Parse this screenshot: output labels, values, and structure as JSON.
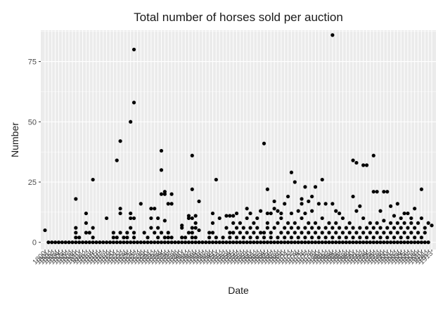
{
  "chart_data": {
    "type": "scatter",
    "title": "Total number of horses sold per auction",
    "xlabel": "Date",
    "ylabel": "Number",
    "ylim": [
      -3,
      88
    ],
    "yticks": [
      0,
      25,
      50,
      75
    ],
    "grid": true,
    "background": "#ebebeb",
    "point_color": "#000000",
    "x_tick_labels_first": "1800",
    "x_tick_labels_last": "1913",
    "x_range": [
      1800,
      1913
    ],
    "points": [
      [
        1800,
        5
      ],
      [
        1801,
        0
      ],
      [
        1802,
        0
      ],
      [
        1803,
        0
      ],
      [
        1804,
        0
      ],
      [
        1805,
        0
      ],
      [
        1806,
        0
      ],
      [
        1807,
        0
      ],
      [
        1808,
        0
      ],
      [
        1809,
        0
      ],
      [
        1809,
        6
      ],
      [
        1809,
        18
      ],
      [
        1809,
        4
      ],
      [
        1809,
        2
      ],
      [
        1810,
        0
      ],
      [
        1810,
        2
      ],
      [
        1811,
        0
      ],
      [
        1812,
        0
      ],
      [
        1812,
        8
      ],
      [
        1812,
        12
      ],
      [
        1812,
        4
      ],
      [
        1813,
        0
      ],
      [
        1813,
        4
      ],
      [
        1814,
        0
      ],
      [
        1814,
        2
      ],
      [
        1814,
        6
      ],
      [
        1814,
        26
      ],
      [
        1815,
        0
      ],
      [
        1816,
        0
      ],
      [
        1817,
        0
      ],
      [
        1818,
        0
      ],
      [
        1818,
        10
      ],
      [
        1819,
        0
      ],
      [
        1820,
        0
      ],
      [
        1820,
        2
      ],
      [
        1820,
        4
      ],
      [
        1821,
        0
      ],
      [
        1821,
        2
      ],
      [
        1821,
        34
      ],
      [
        1822,
        0
      ],
      [
        1822,
        4
      ],
      [
        1822,
        14
      ],
      [
        1822,
        42
      ],
      [
        1822,
        12
      ],
      [
        1823,
        0
      ],
      [
        1823,
        2
      ],
      [
        1824,
        0
      ],
      [
        1824,
        2
      ],
      [
        1824,
        4
      ],
      [
        1825,
        0
      ],
      [
        1825,
        6
      ],
      [
        1825,
        50
      ],
      [
        1825,
        12
      ],
      [
        1825,
        10
      ],
      [
        1826,
        0
      ],
      [
        1826,
        80
      ],
      [
        1826,
        58
      ],
      [
        1826,
        2
      ],
      [
        1826,
        4
      ],
      [
        1826,
        10
      ],
      [
        1827,
        0
      ],
      [
        1828,
        0
      ],
      [
        1828,
        16
      ],
      [
        1829,
        0
      ],
      [
        1829,
        4
      ],
      [
        1830,
        0
      ],
      [
        1830,
        2
      ],
      [
        1831,
        0
      ],
      [
        1831,
        6
      ],
      [
        1831,
        10
      ],
      [
        1831,
        14
      ],
      [
        1832,
        0
      ],
      [
        1832,
        4
      ],
      [
        1832,
        14
      ],
      [
        1833,
        0
      ],
      [
        1833,
        2
      ],
      [
        1833,
        6
      ],
      [
        1833,
        10
      ],
      [
        1834,
        0
      ],
      [
        1834,
        30
      ],
      [
        1834,
        38
      ],
      [
        1834,
        4
      ],
      [
        1834,
        20
      ],
      [
        1835,
        0
      ],
      [
        1835,
        20
      ],
      [
        1835,
        21
      ],
      [
        1835,
        9
      ],
      [
        1835,
        2
      ],
      [
        1836,
        0
      ],
      [
        1836,
        16
      ],
      [
        1836,
        4
      ],
      [
        1836,
        2
      ],
      [
        1837,
        0
      ],
      [
        1837,
        20
      ],
      [
        1837,
        16
      ],
      [
        1837,
        2
      ],
      [
        1838,
        0
      ],
      [
        1839,
        0
      ],
      [
        1840,
        0
      ],
      [
        1840,
        2
      ],
      [
        1840,
        6
      ],
      [
        1840,
        7
      ],
      [
        1841,
        0
      ],
      [
        1841,
        2
      ],
      [
        1842,
        0
      ],
      [
        1842,
        4
      ],
      [
        1842,
        10
      ],
      [
        1842,
        11
      ],
      [
        1843,
        0
      ],
      [
        1843,
        22
      ],
      [
        1843,
        36
      ],
      [
        1843,
        10
      ],
      [
        1843,
        6
      ],
      [
        1843,
        4
      ],
      [
        1843,
        2
      ],
      [
        1844,
        0
      ],
      [
        1844,
        2
      ],
      [
        1844,
        8
      ],
      [
        1844,
        11
      ],
      [
        1844,
        6
      ],
      [
        1845,
        0
      ],
      [
        1845,
        17
      ],
      [
        1845,
        5
      ],
      [
        1846,
        0
      ],
      [
        1847,
        0
      ],
      [
        1848,
        0
      ],
      [
        1848,
        2
      ],
      [
        1848,
        4
      ],
      [
        1849,
        0
      ],
      [
        1849,
        4
      ],
      [
        1849,
        8
      ],
      [
        1849,
        12
      ],
      [
        1850,
        0
      ],
      [
        1850,
        26
      ],
      [
        1850,
        2
      ],
      [
        1851,
        0
      ],
      [
        1851,
        10
      ],
      [
        1852,
        0
      ],
      [
        1852,
        2
      ],
      [
        1853,
        0
      ],
      [
        1853,
        6
      ],
      [
        1853,
        11
      ],
      [
        1854,
        0
      ],
      [
        1854,
        11
      ],
      [
        1854,
        4
      ],
      [
        1854,
        2
      ],
      [
        1855,
        0
      ],
      [
        1855,
        4
      ],
      [
        1855,
        8
      ],
      [
        1855,
        11
      ],
      [
        1856,
        0
      ],
      [
        1856,
        2
      ],
      [
        1856,
        6
      ],
      [
        1856,
        12
      ],
      [
        1857,
        0
      ],
      [
        1857,
        4
      ],
      [
        1857,
        8
      ],
      [
        1858,
        0
      ],
      [
        1858,
        2
      ],
      [
        1858,
        6
      ],
      [
        1859,
        0
      ],
      [
        1859,
        4
      ],
      [
        1859,
        10
      ],
      [
        1859,
        14
      ],
      [
        1860,
        0
      ],
      [
        1860,
        2
      ],
      [
        1860,
        6
      ],
      [
        1860,
        12
      ],
      [
        1861,
        0
      ],
      [
        1861,
        4
      ],
      [
        1861,
        8
      ],
      [
        1862,
        0
      ],
      [
        1862,
        2
      ],
      [
        1862,
        6
      ],
      [
        1862,
        10
      ],
      [
        1863,
        0
      ],
      [
        1863,
        4
      ],
      [
        1863,
        13
      ],
      [
        1864,
        0
      ],
      [
        1864,
        2
      ],
      [
        1864,
        4
      ],
      [
        1864,
        41
      ],
      [
        1865,
        0
      ],
      [
        1865,
        8
      ],
      [
        1865,
        22
      ],
      [
        1865,
        12
      ],
      [
        1865,
        6
      ],
      [
        1866,
        0
      ],
      [
        1866,
        2
      ],
      [
        1866,
        4
      ],
      [
        1866,
        12
      ],
      [
        1867,
        0
      ],
      [
        1867,
        6
      ],
      [
        1867,
        14
      ],
      [
        1867,
        17
      ],
      [
        1868,
        0
      ],
      [
        1868,
        2
      ],
      [
        1868,
        8
      ],
      [
        1868,
        13
      ],
      [
        1869,
        0
      ],
      [
        1869,
        4
      ],
      [
        1869,
        10
      ],
      [
        1869,
        12
      ],
      [
        1870,
        0
      ],
      [
        1870,
        2
      ],
      [
        1870,
        6
      ],
      [
        1870,
        16
      ],
      [
        1871,
        0
      ],
      [
        1871,
        4
      ],
      [
        1871,
        8
      ],
      [
        1871,
        19
      ],
      [
        1872,
        0
      ],
      [
        1872,
        2
      ],
      [
        1872,
        6
      ],
      [
        1872,
        29
      ],
      [
        1872,
        12
      ],
      [
        1873,
        0
      ],
      [
        1873,
        4
      ],
      [
        1873,
        8
      ],
      [
        1873,
        25
      ],
      [
        1874,
        0
      ],
      [
        1874,
        2
      ],
      [
        1874,
        6
      ],
      [
        1874,
        13
      ],
      [
        1875,
        0
      ],
      [
        1875,
        4
      ],
      [
        1875,
        10
      ],
      [
        1875,
        16
      ],
      [
        1875,
        18
      ],
      [
        1876,
        0
      ],
      [
        1876,
        2
      ],
      [
        1876,
        6
      ],
      [
        1876,
        12
      ],
      [
        1876,
        23
      ],
      [
        1877,
        0
      ],
      [
        1877,
        4
      ],
      [
        1877,
        8
      ],
      [
        1877,
        17
      ],
      [
        1878,
        0
      ],
      [
        1878,
        2
      ],
      [
        1878,
        6
      ],
      [
        1878,
        13
      ],
      [
        1878,
        19
      ],
      [
        1879,
        0
      ],
      [
        1879,
        4
      ],
      [
        1879,
        8
      ],
      [
        1879,
        23
      ],
      [
        1880,
        0
      ],
      [
        1880,
        2
      ],
      [
        1880,
        6
      ],
      [
        1880,
        16
      ],
      [
        1881,
        0
      ],
      [
        1881,
        4
      ],
      [
        1881,
        10
      ],
      [
        1881,
        26
      ],
      [
        1882,
        0
      ],
      [
        1882,
        2
      ],
      [
        1882,
        6
      ],
      [
        1882,
        16
      ],
      [
        1883,
        0
      ],
      [
        1883,
        4
      ],
      [
        1883,
        8
      ],
      [
        1884,
        0
      ],
      [
        1884,
        2
      ],
      [
        1884,
        6
      ],
      [
        1884,
        86
      ],
      [
        1884,
        16
      ],
      [
        1885,
        0
      ],
      [
        1885,
        4
      ],
      [
        1885,
        8
      ],
      [
        1885,
        13
      ],
      [
        1886,
        0
      ],
      [
        1886,
        2
      ],
      [
        1886,
        6
      ],
      [
        1886,
        12
      ],
      [
        1887,
        0
      ],
      [
        1887,
        4
      ],
      [
        1887,
        10
      ],
      [
        1888,
        0
      ],
      [
        1888,
        2
      ],
      [
        1888,
        6
      ],
      [
        1889,
        0
      ],
      [
        1889,
        4
      ],
      [
        1889,
        8
      ],
      [
        1890,
        0
      ],
      [
        1890,
        2
      ],
      [
        1890,
        6
      ],
      [
        1890,
        34
      ],
      [
        1890,
        19
      ],
      [
        1891,
        0
      ],
      [
        1891,
        4
      ],
      [
        1891,
        33
      ],
      [
        1891,
        13
      ],
      [
        1892,
        0
      ],
      [
        1892,
        2
      ],
      [
        1892,
        6
      ],
      [
        1892,
        15
      ],
      [
        1893,
        0
      ],
      [
        1893,
        4
      ],
      [
        1893,
        10
      ],
      [
        1893,
        32
      ],
      [
        1894,
        0
      ],
      [
        1894,
        2
      ],
      [
        1894,
        6
      ],
      [
        1894,
        32
      ],
      [
        1895,
        0
      ],
      [
        1895,
        4
      ],
      [
        1895,
        8
      ],
      [
        1896,
        0
      ],
      [
        1896,
        2
      ],
      [
        1896,
        6
      ],
      [
        1896,
        36
      ],
      [
        1896,
        21
      ],
      [
        1897,
        0
      ],
      [
        1897,
        4
      ],
      [
        1897,
        8
      ],
      [
        1897,
        21
      ],
      [
        1898,
        0
      ],
      [
        1898,
        2
      ],
      [
        1898,
        6
      ],
      [
        1898,
        13
      ],
      [
        1899,
        0
      ],
      [
        1899,
        4
      ],
      [
        1899,
        9
      ],
      [
        1899,
        21
      ],
      [
        1900,
        0
      ],
      [
        1900,
        2
      ],
      [
        1900,
        6
      ],
      [
        1900,
        21
      ],
      [
        1901,
        0
      ],
      [
        1901,
        4
      ],
      [
        1901,
        8
      ],
      [
        1901,
        15
      ],
      [
        1902,
        0
      ],
      [
        1902,
        2
      ],
      [
        1902,
        6
      ],
      [
        1902,
        11
      ],
      [
        1903,
        0
      ],
      [
        1903,
        4
      ],
      [
        1903,
        8
      ],
      [
        1903,
        16
      ],
      [
        1904,
        0
      ],
      [
        1904,
        2
      ],
      [
        1904,
        6
      ],
      [
        1904,
        10
      ],
      [
        1905,
        0
      ],
      [
        1905,
        4
      ],
      [
        1905,
        8
      ],
      [
        1905,
        12
      ],
      [
        1906,
        0
      ],
      [
        1906,
        2
      ],
      [
        1906,
        6
      ],
      [
        1906,
        12
      ],
      [
        1907,
        0
      ],
      [
        1907,
        4
      ],
      [
        1907,
        8
      ],
      [
        1907,
        10
      ],
      [
        1908,
        0
      ],
      [
        1908,
        2
      ],
      [
        1908,
        6
      ],
      [
        1908,
        14
      ],
      [
        1909,
        0
      ],
      [
        1909,
        4
      ],
      [
        1909,
        8
      ],
      [
        1910,
        0
      ],
      [
        1910,
        2
      ],
      [
        1910,
        22
      ],
      [
        1910,
        10
      ],
      [
        1911,
        0
      ],
      [
        1911,
        4
      ],
      [
        1911,
        6
      ],
      [
        1912,
        0
      ],
      [
        1912,
        8
      ],
      [
        1913,
        7
      ]
    ]
  }
}
